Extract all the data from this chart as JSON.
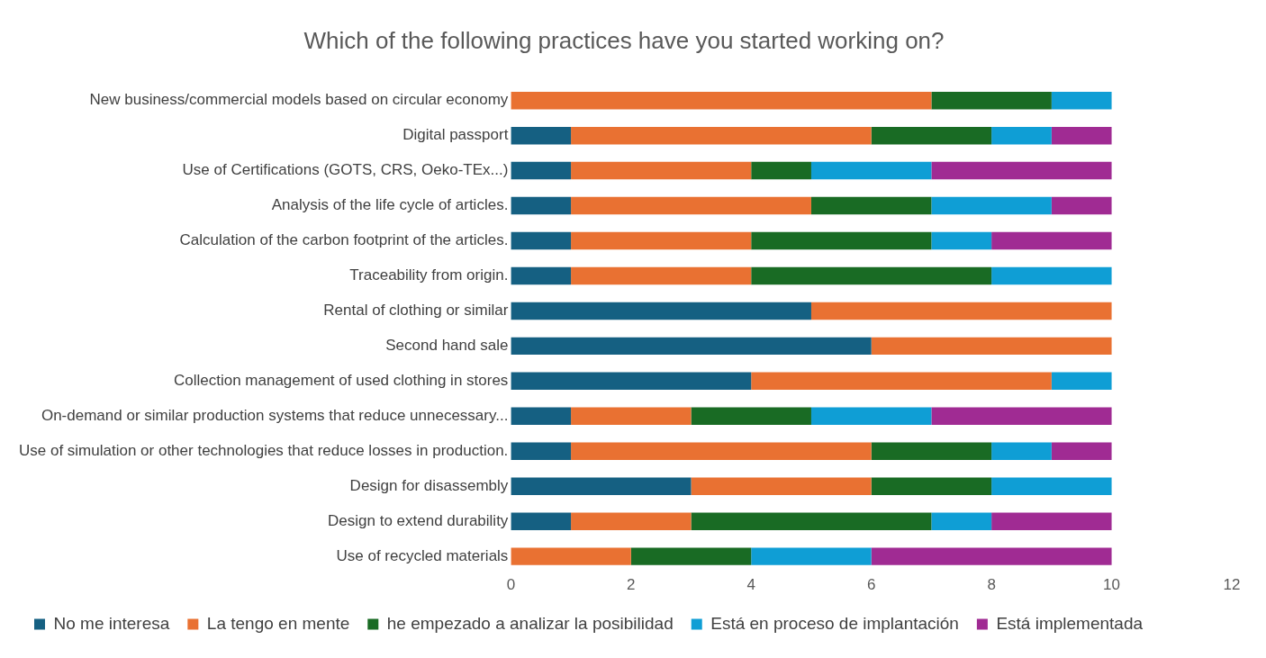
{
  "chart_data": {
    "type": "bar",
    "orientation": "horizontal",
    "stacked": true,
    "title": "Which of the following practices have you started working on?",
    "categories": [
      "New business/commercial models based on circular economy",
      "Digital passport",
      "Use of Certifications (GOTS, CRS, Oeko-TEx...)",
      "Analysis of the life cycle of articles.",
      "Calculation of the carbon footprint of the articles.",
      "Traceability from origin.",
      "Rental of clothing or similar",
      "Second hand sale",
      "Collection management of used clothing in stores",
      "On-demand or similar production systems that reduce unnecessary...",
      "Use of simulation or other technologies that reduce losses in production.",
      "Design for disassembly",
      "Design to extend durability",
      "Use of recycled materials"
    ],
    "series": [
      {
        "name": "No me interesa",
        "color": "#156082",
        "values": [
          0,
          1,
          1,
          1,
          1,
          1,
          5,
          6,
          4,
          1,
          1,
          3,
          1,
          0
        ]
      },
      {
        "name": "La tengo en mente",
        "color": "#e97132",
        "values": [
          7,
          5,
          3,
          4,
          3,
          3,
          5,
          4,
          5,
          2,
          5,
          3,
          2,
          2
        ]
      },
      {
        "name": "he empezado a analizar la posibilidad",
        "color": "#196b24",
        "values": [
          2,
          2,
          1,
          2,
          3,
          4,
          0,
          0,
          0,
          2,
          2,
          2,
          4,
          2
        ]
      },
      {
        "name": "Está en proceso de implantación",
        "color": "#0f9ed5",
        "values": [
          1,
          1,
          2,
          2,
          1,
          2,
          0,
          0,
          1,
          2,
          1,
          2,
          1,
          2
        ]
      },
      {
        "name": "Está implementada",
        "color": "#a02b93",
        "values": [
          0,
          1,
          3,
          1,
          2,
          0,
          0,
          0,
          0,
          3,
          1,
          0,
          2,
          4
        ]
      }
    ],
    "xlim": [
      0,
      12
    ],
    "xticks": [
      0,
      2,
      4,
      6,
      8,
      10,
      12
    ],
    "grid": false,
    "legend": "bottom"
  }
}
